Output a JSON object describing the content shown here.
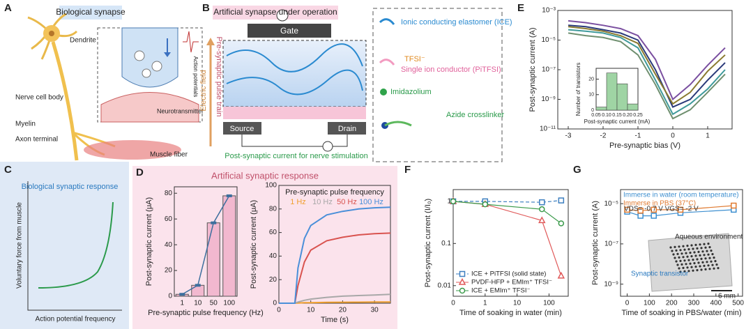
{
  "panel_labels": [
    "A",
    "B",
    "C",
    "D",
    "E",
    "F",
    "G"
  ],
  "panels": {
    "A": {
      "title": "Biological synapse",
      "labels": [
        "Dendrite",
        "Nerve cell body",
        "Myelin",
        "Axon terminal",
        "Muscle fiber",
        "Action potentials",
        "Neurotransmitter"
      ]
    },
    "B": {
      "title": "Artificial synapse under operation",
      "gate": "Gate",
      "source": "Source",
      "drain": "Drain",
      "pulse": "Pre-synaptic pulse train",
      "field": "Electric field",
      "current": "Post-synaptic current for nerve stimulation",
      "materials": [
        "Ionic conducting elastomer (ICE)",
        "TFSI⁻",
        "Single ion conductor (PiTFSI)",
        "Imidazolium",
        "Azide crosslinker"
      ]
    },
    "C": {
      "title": "Biological synaptic response",
      "y_label": "Voluntary force from muscle",
      "x_label": "Action potential frequency"
    },
    "D": {
      "title": "Artificial synaptic response"
    }
  },
  "chart_data": [
    {
      "type": "bar",
      "categories": [
        "1",
        "10",
        "50",
        "100"
      ],
      "values": [
        1.5,
        8.5,
        57,
        78
      ],
      "color": "#f2b8cf",
      "line_color": "#3d6f9e",
      "ylim": [
        0,
        85
      ],
      "yticks": [
        0,
        20,
        40,
        60,
        80
      ],
      "y_label": "Post-synaptic current (μA)",
      "x_label": "Pre-synaptic pulse frequency (Hz)"
    },
    {
      "type": "line",
      "x": [
        0,
        5,
        6,
        8,
        10,
        15,
        20,
        25,
        30,
        35
      ],
      "series": [
        {
          "name": "1 Hz",
          "color": "#f0a030",
          "values": [
            0,
            0,
            0.2,
            0.4,
            0.5,
            0.7,
            0.8,
            0.9,
            1,
            1
          ]
        },
        {
          "name": "10 Hz",
          "color": "#a8a8a8",
          "values": [
            0,
            0,
            1,
            2.5,
            3.5,
            5,
            6,
            6.5,
            7,
            7.5
          ]
        },
        {
          "name": "50 Hz",
          "color": "#d9534f",
          "values": [
            0,
            0,
            15,
            35,
            45,
            53,
            56,
            58,
            59,
            59.5
          ]
        },
        {
          "name": "100 Hz",
          "color": "#4a8fd9",
          "values": [
            0,
            0,
            30,
            55,
            66,
            75,
            78,
            80,
            81,
            81.5
          ]
        }
      ],
      "legend_title": "Pre-synaptic pulse frequency",
      "legend": "upper center",
      "xlim": [
        0,
        35
      ],
      "xticks": [
        0,
        10,
        20,
        30
      ],
      "ylim": [
        0,
        100
      ],
      "yticks": [
        0,
        20,
        40,
        60,
        80,
        100
      ],
      "x_label": "Time (s)",
      "y_label": "Post-synaptic current (μA)"
    },
    {
      "type": "line",
      "yscale": "log",
      "x": [
        -3,
        -2.5,
        -2,
        -1.5,
        -1,
        -0.5,
        0,
        0.5,
        1,
        1.5
      ],
      "series": [
        {
          "color": "#2b3a7a",
          "values": [
            0.0001,
            8e-05,
            5e-05,
            3e-05,
            1e-05,
            1e-07,
            3e-10,
            1e-09,
            2e-08,
            3e-07
          ]
        },
        {
          "color": "#3f9a9a",
          "values": [
            5e-05,
            4e-05,
            3e-05,
            1.5e-05,
            3e-06,
            2e-08,
            1e-10,
            5e-10,
            5e-09,
            1e-07
          ]
        },
        {
          "color": "#7a4fa0",
          "values": [
            0.0002,
            0.00015,
            0.0001,
            6e-05,
            2e-05,
            5e-07,
            1e-09,
            1e-08,
            2e-07,
            3e-06
          ]
        },
        {
          "color": "#6f8f6f",
          "values": [
            3e-05,
            2e-05,
            1.5e-05,
            8e-06,
            1e-06,
            1e-08,
            5e-11,
            2e-10,
            3e-09,
            5e-08
          ]
        },
        {
          "color": "#8a7a30",
          "values": [
            8e-05,
            6e-05,
            4e-05,
            2e-05,
            6e-06,
            5e-08,
            5e-10,
            3e-09,
            8e-08,
            1e-06
          ]
        }
      ],
      "xlim": [
        -3.3,
        1.7
      ],
      "xticks": [
        -3,
        -2,
        -1,
        0,
        1
      ],
      "ylim": [
        1e-11,
        0.001
      ],
      "yticks": [
        {
          "value": 0.001,
          "label": "10⁻³"
        },
        {
          "value": 1e-05,
          "label": "10⁻⁵"
        },
        {
          "value": 1e-07,
          "label": "10⁻⁷"
        },
        {
          "value": 1e-09,
          "label": "10⁻⁹"
        },
        {
          "value": 1e-11,
          "label": "10⁻¹¹"
        }
      ],
      "x_label": "Pre-synaptic bias (V)",
      "y_label": "Post-synaptic current (A)"
    },
    {
      "type": "histogram",
      "bins": [
        0.05,
        0.1,
        0.15,
        0.2,
        0.25
      ],
      "values": [
        2,
        24,
        17,
        4
      ],
      "color": "#9fd4a4",
      "xlim": [
        0.05,
        0.25
      ],
      "xticks": [
        {
          "value": 0.05,
          "label": "0.05"
        },
        {
          "value": 0.1,
          "label": "0.10"
        },
        {
          "value": 0.15,
          "label": "0.15"
        },
        {
          "value": 0.2,
          "label": "0.20"
        },
        {
          "value": 0.25,
          "label": "0.25"
        }
      ],
      "ylim": [
        0,
        27
      ],
      "yticks": [
        0,
        10,
        20
      ],
      "x_label": "Post-synaptic current (mA)",
      "y_label": "Number of transistors"
    },
    {
      "type": "line",
      "markers": true,
      "xscale": "log",
      "yscale": "log",
      "x": [
        0,
        1,
        60,
        240
      ],
      "series": [
        {
          "name": "ICE + PiTFSI (solid state)",
          "color": "#3d7fc0",
          "marker": "square",
          "dash": "5,3",
          "values": [
            1,
            1,
            0.95,
            1.05
          ]
        },
        {
          "name": "PVDF-HFP + EMIm⁺ TFSI⁻",
          "color": "#e05a5a",
          "marker": "triangle",
          "values": [
            1,
            0.85,
            0.35,
            0.017
          ]
        },
        {
          "name": "ICE + EMIm⁺ TFSI⁻",
          "color": "#3a9a4a",
          "marker": "circle",
          "values": [
            1,
            0.85,
            0.65,
            0.3
          ]
        }
      ],
      "legend": "lower left",
      "xlim": [
        0,
        400
      ],
      "xticks": [
        0,
        1,
        10,
        100
      ],
      "ylim": [
        0.0056,
        1.9
      ],
      "yticks": [
        0.01,
        0.1,
        1
      ],
      "x_label": "Time of soaking in water (min)",
      "y_label": "Post-synaptic current (I/I₀)"
    },
    {
      "type": "line",
      "markers": true,
      "yscale": "log",
      "x": [
        0,
        60,
        120,
        240,
        480
      ],
      "series": [
        {
          "name": "Immerse in water (room temperature)",
          "color": "#3d8fd0",
          "marker": "square",
          "values": [
            4e-06,
            2.5e-06,
            2.5e-06,
            3.5e-06,
            5e-06
          ]
        },
        {
          "name": "Immerse in PBS (37°C)",
          "color": "#e07a30",
          "marker": "square",
          "values": [
            5e-06,
            4.5e-06,
            5e-06,
            5e-06,
            8e-06
          ]
        }
      ],
      "legend": "upper left",
      "xlim": [
        -30,
        520
      ],
      "xticks": [
        0,
        100,
        200,
        300,
        400,
        500
      ],
      "ylim": [
        2.5e-10,
        5e-05
      ],
      "yticks": [
        {
          "value": 1e-05,
          "label": "10⁻⁵"
        },
        {
          "value": 1e-07,
          "label": "10⁻⁷"
        },
        {
          "value": 1e-09,
          "label": "10⁻⁹"
        }
      ],
      "annotations": [
        "VDS= -0.7 V   VGS= -2 V",
        "Aqueous environment",
        "Synaptic transistor",
        "6 mm"
      ],
      "x_label": "Time of soaking in PBS/water (min)",
      "y_label": "Post-synaptic current (A)"
    }
  ]
}
